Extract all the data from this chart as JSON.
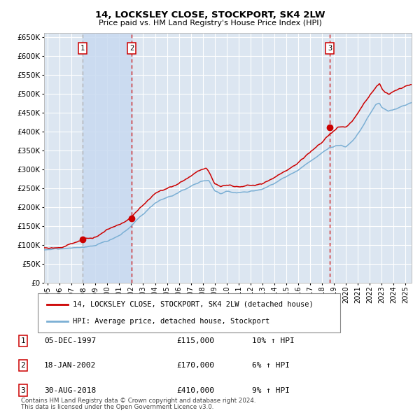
{
  "title": "14, LOCKSLEY CLOSE, STOCKPORT, SK4 2LW",
  "subtitle": "Price paid vs. HM Land Registry's House Price Index (HPI)",
  "background_color": "#ffffff",
  "plot_bg_color": "#dce6f1",
  "grid_color": "#ffffff",
  "red_line_color": "#cc0000",
  "blue_line_color": "#7bafd4",
  "sale_marker_color": "#cc0000",
  "vline_color_red": "#cc0000",
  "vline_color_grey": "#aaaaaa",
  "span_color": "#c8daf0",
  "transactions": [
    {
      "label": "1",
      "date_str": "05-DEC-1997",
      "price": 115000,
      "price_str": "£115,000",
      "pct": "10%",
      "x_year": 1997.92
    },
    {
      "label": "2",
      "date_str": "18-JAN-2002",
      "price": 170000,
      "price_str": "£170,000",
      "pct": "6%",
      "x_year": 2002.04
    },
    {
      "label": "3",
      "date_str": "30-AUG-2018",
      "price": 410000,
      "price_str": "£410,000",
      "pct": "9%",
      "x_year": 2018.66
    }
  ],
  "legend_line1": "14, LOCKSLEY CLOSE, STOCKPORT, SK4 2LW (detached house)",
  "legend_line2": "HPI: Average price, detached house, Stockport",
  "footnote_line1": "Contains HM Land Registry data © Crown copyright and database right 2024.",
  "footnote_line2": "This data is licensed under the Open Government Licence v3.0.",
  "ylim": [
    0,
    660000
  ],
  "xlim_start": 1994.7,
  "xlim_end": 2025.5,
  "yticks": [
    0,
    50000,
    100000,
    150000,
    200000,
    250000,
    300000,
    350000,
    400000,
    450000,
    500000,
    550000,
    600000,
    650000
  ],
  "xtick_years": [
    1995,
    1996,
    1997,
    1998,
    1999,
    2000,
    2001,
    2002,
    2003,
    2004,
    2005,
    2006,
    2007,
    2008,
    2009,
    2010,
    2011,
    2012,
    2013,
    2014,
    2015,
    2016,
    2017,
    2018,
    2019,
    2020,
    2021,
    2022,
    2023,
    2024,
    2025
  ]
}
